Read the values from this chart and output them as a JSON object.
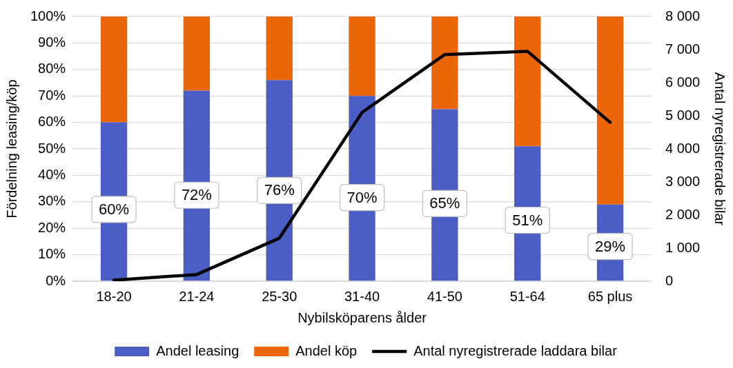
{
  "chart_data": {
    "type": "bar",
    "stacked": true,
    "xlabel": "Nybilsköparens ålder",
    "ylabel": "Fördelning leasing/köp",
    "y2label": "Antal nyregistrerade bilar",
    "categories": [
      "18-20",
      "21-24",
      "25-30",
      "31-40",
      "41-50",
      "51-64",
      "65 plus"
    ],
    "series": [
      {
        "name": "Andel leasing",
        "color": "#4b5ec6",
        "values": [
          60,
          72,
          76,
          70,
          65,
          51,
          29
        ],
        "value_labels": [
          "60%",
          "72%",
          "76%",
          "70%",
          "65%",
          "51%",
          "29%"
        ]
      },
      {
        "name": "Andel köp",
        "color": "#eb6608",
        "values": [
          40,
          28,
          24,
          30,
          35,
          49,
          71
        ]
      },
      {
        "name": "Antal nyregistrerade laddara bilar",
        "type": "line",
        "axis": "y2",
        "color": "#000000",
        "marker": "none",
        "values": [
          30,
          200,
          1300,
          5100,
          6850,
          6950,
          4800
        ]
      }
    ],
    "ylim": [
      0,
      100
    ],
    "yticks": [
      {
        "value": 0,
        "label": "0%"
      },
      {
        "value": 10,
        "label": "10%"
      },
      {
        "value": 20,
        "label": "20%"
      },
      {
        "value": 30,
        "label": "30%"
      },
      {
        "value": 40,
        "label": "40%"
      },
      {
        "value": 50,
        "label": "50%"
      },
      {
        "value": 60,
        "label": "60%"
      },
      {
        "value": 70,
        "label": "70%"
      },
      {
        "value": 80,
        "label": "80%"
      },
      {
        "value": 90,
        "label": "90%"
      },
      {
        "value": 100,
        "label": "100%"
      }
    ],
    "y2lim": [
      0,
      8000
    ],
    "y2ticks": [
      0,
      {
        "value": 1000,
        "label": "1 000"
      },
      {
        "value": 2000,
        "label": "2 000"
      },
      {
        "value": 3000,
        "label": "3 000"
      },
      {
        "value": 4000,
        "label": "4 000"
      },
      {
        "value": 5000,
        "label": "5 000"
      },
      {
        "value": 6000,
        "label": "6 000"
      },
      {
        "value": 7000,
        "label": "7 000"
      },
      {
        "value": 8000,
        "label": "8 000"
      }
    ],
    "grid": "y",
    "legend": "bottom"
  }
}
